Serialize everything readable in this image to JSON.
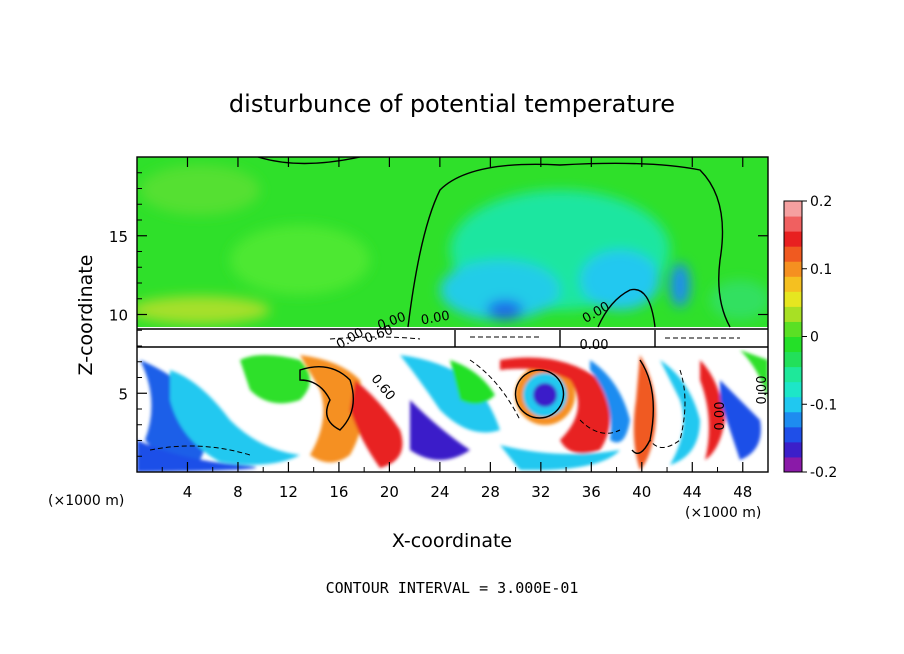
{
  "chart_data": {
    "type": "heatmap",
    "title": "disturbunce of potential temperature",
    "xlabel": "X-coordinate",
    "ylabel": "Z-coordinate",
    "x_unit_left": "(×1000 m)",
    "x_unit_right": "(×1000 m)",
    "xlim": [
      0,
      50
    ],
    "ylim": [
      0,
      20
    ],
    "x_ticks": [
      4,
      8,
      12,
      16,
      20,
      24,
      28,
      32,
      36,
      40,
      44,
      48
    ],
    "y_ticks": [
      5,
      10,
      15
    ],
    "colorbar": {
      "range": [
        -0.2,
        0.2
      ],
      "ticks": [
        {
          "value": 0.2,
          "label": "0.2"
        },
        {
          "value": 0.1,
          "label": "0.1"
        },
        {
          "value": 0.0,
          "label": "0"
        },
        {
          "value": -0.1,
          "label": "-0.1"
        },
        {
          "value": -0.2,
          "label": "-0.2"
        }
      ],
      "colors": [
        "#8a1aa8",
        "#3b1fc9",
        "#1f4fe8",
        "#1e8cf0",
        "#20c8f0",
        "#1de6c8",
        "#1ee89a",
        "#22e05a",
        "#24e028",
        "#5ae024",
        "#a8e024",
        "#e6e620",
        "#f5c020",
        "#f59020",
        "#f05a20",
        "#e82020",
        "#f06060",
        "#f5a0a0"
      ]
    },
    "contour_labels": [
      "0.60",
      "0.00",
      "0.00",
      "0.00",
      "0.00",
      "0.60",
      "0.00",
      "0.00",
      "0.00"
    ],
    "footer": "CONTOUR INTERVAL = 3.000E-01"
  }
}
